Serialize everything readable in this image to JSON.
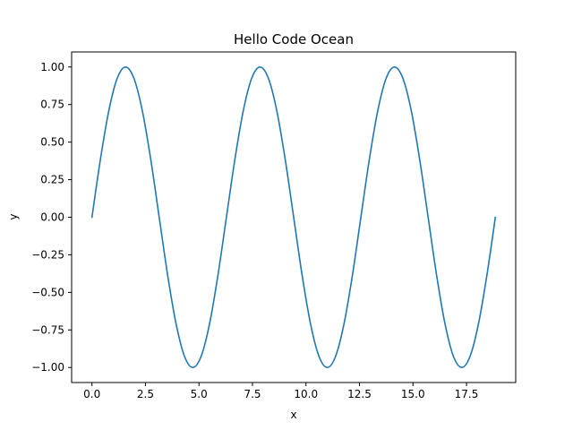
{
  "chart_data": {
    "type": "line",
    "title": "Hello Code Ocean",
    "xlabel": "x",
    "ylabel": "y",
    "xlim": [
      -0.95,
      19.8
    ],
    "ylim": [
      -1.1,
      1.1
    ],
    "xticks": [
      0.0,
      2.5,
      5.0,
      7.5,
      10.0,
      12.5,
      15.0,
      17.5
    ],
    "xtick_labels": [
      "0.0",
      "2.5",
      "5.0",
      "7.5",
      "10.0",
      "12.5",
      "15.0",
      "17.5"
    ],
    "yticks": [
      -1.0,
      -0.75,
      -0.5,
      -0.25,
      0.0,
      0.25,
      0.5,
      0.75,
      1.0
    ],
    "ytick_labels": [
      "−1.00",
      "−0.75",
      "−0.50",
      "−0.25",
      "0.00",
      "0.25",
      "0.50",
      "0.75",
      "1.00"
    ],
    "grid": false,
    "series": [
      {
        "color": "#1f77b4",
        "x": [
          0.0,
          0.393,
          0.785,
          1.178,
          1.571,
          1.963,
          2.356,
          2.749,
          3.142,
          3.534,
          3.927,
          4.32,
          4.712,
          5.105,
          5.498,
          5.89,
          6.283,
          6.676,
          7.069,
          7.461,
          7.854,
          8.247,
          8.639,
          9.032,
          9.425,
          9.817,
          10.21,
          10.603,
          10.996,
          11.388,
          11.781,
          12.174,
          12.566,
          12.959,
          13.352,
          13.744,
          14.137,
          14.53,
          14.923,
          15.315,
          15.708,
          16.101,
          16.493,
          16.886,
          17.279,
          17.671,
          18.064,
          18.457,
          18.85
        ],
        "y": [
          0.0,
          0.383,
          0.707,
          0.924,
          1.0,
          0.924,
          0.707,
          0.383,
          0.0,
          -0.383,
          -0.707,
          -0.924,
          -1.0,
          -0.924,
          -0.707,
          -0.383,
          0.0,
          0.383,
          0.707,
          0.924,
          1.0,
          0.924,
          0.707,
          0.383,
          0.0,
          -0.383,
          -0.707,
          -0.924,
          -1.0,
          -0.924,
          -0.707,
          -0.383,
          0.0,
          0.383,
          0.707,
          0.924,
          1.0,
          0.924,
          0.707,
          0.383,
          0.0,
          -0.383,
          -0.707,
          -0.924,
          -1.0,
          -0.924,
          -0.707,
          -0.383,
          0.0
        ]
      }
    ]
  }
}
